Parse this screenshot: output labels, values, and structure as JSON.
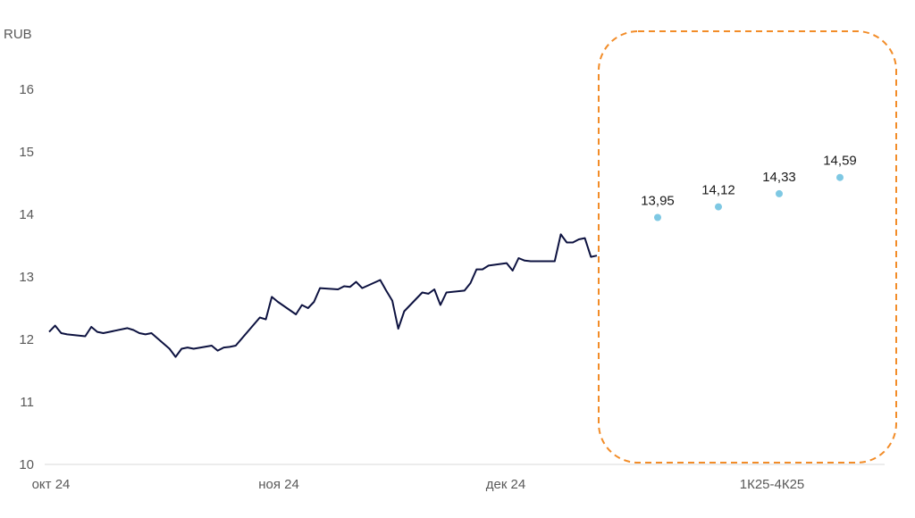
{
  "chart_data": {
    "type": "line",
    "title": "",
    "ylabel": "RUB",
    "ylim": [
      10,
      16.8
    ],
    "grid": false,
    "y_ticks": [
      "10",
      "11",
      "12",
      "13",
      "14",
      "15",
      "16"
    ],
    "x_ticks": [
      "окт 24",
      "ноя 24",
      "дек 24",
      "1К25-4К25"
    ],
    "colors": {
      "line": "#0d1240",
      "forecast": "#7ec8e3",
      "highlight": "#f28c28",
      "axis": "#d9d9d9"
    },
    "series": [
      {
        "type": "line",
        "x": [
          "2024-10-01",
          "2024-10-02",
          "2024-10-03",
          "2024-10-04",
          "2024-10-07",
          "2024-10-08",
          "2024-10-09",
          "2024-10-10",
          "2024-10-11",
          "2024-10-14",
          "2024-10-15",
          "2024-10-16",
          "2024-10-17",
          "2024-10-18",
          "2024-10-21",
          "2024-10-22",
          "2024-10-23",
          "2024-10-24",
          "2024-10-25",
          "2024-10-28",
          "2024-10-29",
          "2024-10-30",
          "2024-10-31",
          "2024-11-01",
          "2024-11-05",
          "2024-11-06",
          "2024-11-07",
          "2024-11-08",
          "2024-11-11",
          "2024-11-12",
          "2024-11-13",
          "2024-11-14",
          "2024-11-15",
          "2024-11-18",
          "2024-11-19",
          "2024-11-20",
          "2024-11-21",
          "2024-11-22",
          "2024-11-25",
          "2024-11-26",
          "2024-11-27",
          "2024-11-28",
          "2024-11-29",
          "2024-12-02",
          "2024-12-03",
          "2024-12-04",
          "2024-12-05",
          "2024-12-06",
          "2024-12-09",
          "2024-12-10",
          "2024-12-11",
          "2024-12-12",
          "2024-12-13",
          "2024-12-16",
          "2024-12-17",
          "2024-12-18",
          "2024-12-19",
          "2024-12-20",
          "2024-12-23",
          "2024-12-24",
          "2024-12-25",
          "2024-12-26",
          "2024-12-27",
          "2024-12-28",
          "2024-12-29",
          "2024-12-30",
          "2024-12-31"
        ],
        "values": [
          12.12,
          12.22,
          12.1,
          12.08,
          12.05,
          12.2,
          12.12,
          12.1,
          12.12,
          12.18,
          12.15,
          12.1,
          12.08,
          12.1,
          11.85,
          11.72,
          11.85,
          11.87,
          11.85,
          11.9,
          11.82,
          11.87,
          11.88,
          11.9,
          12.35,
          12.32,
          12.68,
          12.6,
          12.4,
          12.55,
          12.5,
          12.6,
          12.82,
          12.8,
          12.85,
          12.84,
          12.92,
          12.82,
          12.95,
          12.78,
          12.62,
          12.17,
          12.45,
          12.75,
          12.73,
          12.8,
          12.55,
          12.75,
          12.78,
          12.9,
          13.12,
          13.12,
          13.18,
          13.22,
          13.1,
          13.3,
          13.26,
          13.25,
          13.25,
          13.25,
          13.68,
          13.55,
          13.55,
          13.6,
          13.62,
          13.32,
          13.34
        ]
      },
      {
        "type": "scatter",
        "name": "1К25-4К25",
        "x": [
          "1К25",
          "2К25",
          "3К25",
          "4К25"
        ],
        "values": [
          13.95,
          14.12,
          14.33,
          14.59
        ],
        "labels": [
          "13,95",
          "14,12",
          "14,33",
          "14,59"
        ]
      }
    ]
  }
}
